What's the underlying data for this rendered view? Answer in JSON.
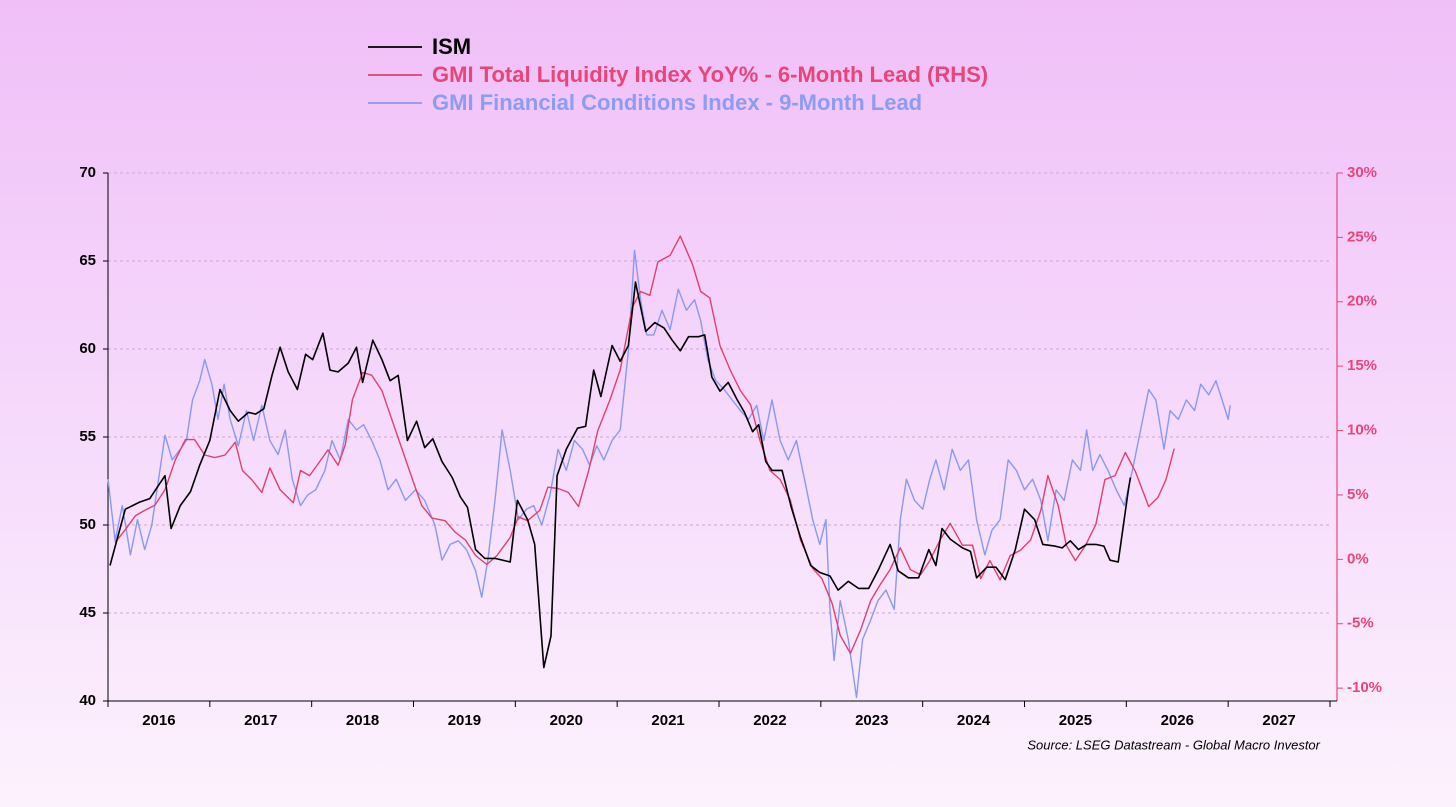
{
  "chart_data": {
    "type": "line",
    "source": "Source: LSEG Datastream - Global Macro Investor",
    "xlim": [
      2016,
      2028
    ],
    "xticks": [
      2016,
      2017,
      2018,
      2019,
      2020,
      2021,
      2022,
      2023,
      2024,
      2025,
      2026,
      2027
    ],
    "ylim": [
      40,
      70
    ],
    "yticks": [
      40,
      45,
      50,
      55,
      60,
      65,
      70
    ],
    "y2lim": [
      -11,
      30
    ],
    "y2ticks": [
      {
        "value": -10,
        "label": "-10%"
      },
      {
        "value": -5,
        "label": "-5%"
      },
      {
        "value": 0,
        "label": "0%"
      },
      {
        "value": 5,
        "label": "5%"
      },
      {
        "value": 10,
        "label": "10%"
      },
      {
        "value": 15,
        "label": "15%"
      },
      {
        "value": 20,
        "label": "20%"
      },
      {
        "value": 25,
        "label": "25%"
      },
      {
        "value": 30,
        "label": "30%"
      }
    ],
    "grid": true,
    "axis_color": "#000000",
    "y2_axis_color": "#e8457a",
    "series": [
      {
        "name": "ISM",
        "color": "#000000",
        "label_color": "#000000",
        "x": [
          2016.02,
          2016.17,
          2016.31,
          2016.41,
          2016.49,
          2016.56,
          2016.62,
          2016.71,
          2016.81,
          2016.9,
          2017.0,
          2017.1,
          2017.2,
          2017.28,
          2017.38,
          2017.45,
          2017.53,
          2017.61,
          2017.69,
          2017.77,
          2017.86,
          2017.94,
          2018.01,
          2018.11,
          2018.18,
          2018.26,
          2018.36,
          2018.44,
          2018.5,
          2018.6,
          2018.69,
          2018.77,
          2018.85,
          2018.94,
          2019.03,
          2019.11,
          2019.19,
          2019.28,
          2019.38,
          2019.46,
          2019.53,
          2019.61,
          2019.7,
          2019.8,
          2019.95,
          2020.02,
          2020.12,
          2020.19,
          2020.28,
          2020.35,
          2020.41,
          2020.5,
          2020.61,
          2020.69,
          2020.77,
          2020.84,
          2020.95,
          2021.03,
          2021.11,
          2021.18,
          2021.28,
          2021.37,
          2021.46,
          2021.54,
          2021.62,
          2021.7,
          2021.8,
          2021.86,
          2021.93,
          2022.01,
          2022.09,
          2022.18,
          2022.25,
          2022.33,
          2022.39,
          2022.46,
          2022.52,
          2022.62,
          2022.71,
          2022.8,
          2022.9,
          2022.99,
          2023.09,
          2023.17,
          2023.27,
          2023.37,
          2023.47,
          2023.56,
          2023.68,
          2023.76,
          2023.86,
          2023.96,
          2024.06,
          2024.13,
          2024.19,
          2024.27,
          2024.39,
          2024.47,
          2024.53,
          2024.63,
          2024.72,
          2024.81,
          2024.91,
          2025.0,
          2025.1,
          2025.18,
          2025.3,
          2025.37,
          2025.45,
          2025.53,
          2025.61,
          2025.7,
          2025.78,
          2025.84,
          2025.92,
          2026.02,
          2026.04
        ],
        "values": [
          47.7,
          50.9,
          51.3,
          51.5,
          52.2,
          52.8,
          49.8,
          51.1,
          51.9,
          53.4,
          54.8,
          57.7,
          56.5,
          55.9,
          56.4,
          56.3,
          56.6,
          58.5,
          60.1,
          58.7,
          57.7,
          59.7,
          59.4,
          60.9,
          58.8,
          58.7,
          59.2,
          60.1,
          58.1,
          60.5,
          59.4,
          58.2,
          58.5,
          54.8,
          55.9,
          54.4,
          54.9,
          53.6,
          52.7,
          51.6,
          51.0,
          48.6,
          48.1,
          48.1,
          47.9,
          51.4,
          50.3,
          48.9,
          41.9,
          43.7,
          52.8,
          54.3,
          55.5,
          55.6,
          58.8,
          57.3,
          60.2,
          59.3,
          60.2,
          63.8,
          61.0,
          61.5,
          61.2,
          60.5,
          59.9,
          60.7,
          60.7,
          60.8,
          58.4,
          57.6,
          58.1,
          57.1,
          56.4,
          55.3,
          55.7,
          53.6,
          53.1,
          53.1,
          51.0,
          49.3,
          47.7,
          47.3,
          47.1,
          46.3,
          46.8,
          46.4,
          46.4,
          47.4,
          48.9,
          47.4,
          47.0,
          47.0,
          48.6,
          47.7,
          49.8,
          49.2,
          48.7,
          48.5,
          47.0,
          47.6,
          47.6,
          46.9,
          48.6,
          50.9,
          50.3,
          48.9,
          48.8,
          48.7,
          49.1,
          48.6,
          48.9,
          48.9,
          48.8,
          48.0,
          47.9,
          52.0,
          52.7
        ]
      },
      {
        "name": "GMI Total Liquidity Index YoY% - 6-Month Lead (RHS)",
        "color": "#e0406e",
        "label_color": "#e8457a",
        "axis": "y2",
        "x": [
          2016.07,
          2016.17,
          2016.27,
          2016.36,
          2016.46,
          2016.56,
          2016.66,
          2016.76,
          2016.85,
          2016.95,
          2017.05,
          2017.15,
          2017.25,
          2017.32,
          2017.41,
          2017.51,
          2017.59,
          2017.69,
          2017.82,
          2017.89,
          2017.98,
          2018.08,
          2018.16,
          2018.26,
          2018.33,
          2018.4,
          2018.5,
          2018.59,
          2018.69,
          2018.79,
          2018.89,
          2018.99,
          2019.08,
          2019.18,
          2019.31,
          2019.41,
          2019.51,
          2019.61,
          2019.72,
          2019.82,
          2019.95,
          2020.03,
          2020.12,
          2020.24,
          2020.32,
          2020.42,
          2020.52,
          2020.62,
          2020.72,
          2020.81,
          2020.93,
          2021.03,
          2021.15,
          2021.23,
          2021.32,
          2021.4,
          2021.52,
          2021.62,
          2021.74,
          2021.82,
          2021.91,
          2022.01,
          2022.11,
          2022.21,
          2022.31,
          2022.4,
          2022.5,
          2022.6,
          2022.7,
          2022.8,
          2022.92,
          2023.01,
          2023.11,
          2023.19,
          2023.29,
          2023.39,
          2023.49,
          2023.58,
          2023.68,
          2023.78,
          2023.88,
          2023.98,
          2024.07,
          2024.17,
          2024.27,
          2024.39,
          2024.49,
          2024.57,
          2024.66,
          2024.76,
          2024.86,
          2024.96,
          2025.06,
          2025.16,
          2025.23,
          2025.33,
          2025.41,
          2025.5,
          2025.6,
          2025.7,
          2025.79,
          2025.89,
          2025.99,
          2026.09,
          2026.22,
          2026.31,
          2026.39,
          2026.47
        ],
        "values": [
          1.3,
          2.3,
          3.4,
          3.8,
          4.2,
          5.4,
          7.7,
          9.3,
          9.3,
          8.1,
          7.9,
          8.1,
          9.1,
          6.9,
          6.2,
          5.2,
          7.1,
          5.4,
          4.4,
          6.9,
          6.5,
          7.6,
          8.5,
          7.3,
          8.9,
          12.4,
          14.5,
          14.3,
          13.1,
          10.8,
          8.5,
          6.2,
          4.2,
          3.2,
          3.0,
          2.1,
          1.5,
          0.3,
          -0.4,
          0.3,
          1.7,
          3.3,
          3.0,
          3.8,
          5.6,
          5.5,
          5.2,
          4.1,
          6.9,
          10.0,
          12.4,
          14.7,
          19.6,
          20.8,
          20.5,
          23.1,
          23.6,
          25.1,
          22.9,
          20.8,
          20.3,
          16.6,
          14.7,
          13.1,
          12.0,
          9.3,
          6.9,
          6.2,
          4.6,
          1.5,
          -0.7,
          -1.5,
          -3.4,
          -5.9,
          -7.3,
          -5.5,
          -3.2,
          -2.0,
          -0.8,
          0.9,
          -0.8,
          -1.2,
          -0.1,
          1.5,
          2.8,
          1.1,
          1.1,
          -1.5,
          -0.1,
          -1.6,
          0.3,
          0.7,
          1.5,
          3.8,
          6.5,
          4.2,
          1.1,
          -0.1,
          1.1,
          2.7,
          6.2,
          6.5,
          8.3,
          6.8,
          4.1,
          4.8,
          6.2,
          8.6
        ]
      },
      {
        "name": "GMI Financial Conditions Index - 9-Month Lead",
        "color": "#8899ee",
        "label_color": "#8c9cf0",
        "x": [
          2016.0,
          2016.07,
          2016.14,
          2016.22,
          2016.29,
          2016.36,
          2016.43,
          2016.51,
          2016.56,
          2016.63,
          2016.71,
          2016.77,
          2016.83,
          2016.9,
          2016.95,
          2017.02,
          2017.08,
          2017.14,
          2017.2,
          2017.28,
          2017.36,
          2017.43,
          2017.51,
          2017.59,
          2017.67,
          2017.74,
          2017.81,
          2017.89,
          2017.96,
          2018.04,
          2018.13,
          2018.2,
          2018.28,
          2018.36,
          2018.44,
          2018.51,
          2018.59,
          2018.67,
          2018.75,
          2018.83,
          2018.92,
          2019.02,
          2019.11,
          2019.21,
          2019.28,
          2019.36,
          2019.44,
          2019.52,
          2019.61,
          2019.67,
          2019.73,
          2019.8,
          2019.87,
          2019.95,
          2020.03,
          2020.11,
          2020.18,
          2020.26,
          2020.34,
          2020.42,
          2020.5,
          2020.58,
          2020.66,
          2020.73,
          2020.8,
          2020.87,
          2020.95,
          2021.03,
          2021.11,
          2021.17,
          2021.23,
          2021.29,
          2021.36,
          2021.44,
          2021.52,
          2021.6,
          2021.68,
          2021.76,
          2021.82,
          2021.89,
          2021.97,
          2022.05,
          2022.13,
          2022.21,
          2022.29,
          2022.37,
          2022.44,
          2022.52,
          2022.6,
          2022.68,
          2022.76,
          2022.84,
          2022.92,
          2022.99,
          2023.05,
          2023.09,
          2023.13,
          2023.19,
          2023.27,
          2023.35,
          2023.41,
          2023.49,
          2023.56,
          2023.64,
          2023.72,
          2023.78,
          2023.84,
          2023.92,
          2024.0,
          2024.07,
          2024.13,
          2024.21,
          2024.29,
          2024.37,
          2024.45,
          2024.53,
          2024.61,
          2024.68,
          2024.76,
          2024.84,
          2024.92,
          2025.0,
          2025.08,
          2025.16,
          2025.23,
          2025.31,
          2025.39,
          2025.47,
          2025.55,
          2025.61,
          2025.67,
          2025.74,
          2025.82,
          2025.9,
          2025.98,
          2026.06,
          2026.14,
          2026.22,
          2026.29,
          2026.37,
          2026.43,
          2026.51,
          2026.59,
          2026.67,
          2026.73,
          2026.81,
          2026.88,
          2026.94,
          2027.0,
          2027.02
        ],
        "values": [
          52.6,
          49.1,
          51.1,
          48.3,
          50.3,
          48.6,
          50.0,
          53.1,
          55.1,
          53.7,
          54.3,
          54.8,
          57.1,
          58.2,
          59.4,
          58.0,
          56.0,
          58.0,
          56.0,
          54.5,
          56.5,
          54.8,
          56.8,
          54.8,
          54.0,
          55.4,
          52.6,
          51.1,
          51.7,
          52.0,
          53.1,
          54.8,
          53.7,
          56.0,
          55.4,
          55.7,
          54.8,
          53.7,
          52.0,
          52.6,
          51.4,
          52.0,
          51.4,
          50.0,
          48.0,
          48.9,
          49.1,
          48.6,
          47.4,
          45.9,
          48.0,
          51.4,
          55.4,
          53.1,
          50.3,
          50.9,
          51.1,
          50.0,
          51.7,
          54.3,
          53.1,
          54.8,
          54.3,
          53.4,
          54.5,
          53.7,
          54.8,
          55.4,
          59.9,
          65.6,
          62.8,
          60.8,
          60.8,
          62.2,
          61.1,
          63.4,
          62.2,
          62.8,
          61.6,
          59.4,
          58.2,
          57.7,
          57.1,
          56.5,
          56.0,
          56.8,
          54.8,
          57.1,
          54.8,
          53.7,
          54.8,
          52.6,
          50.3,
          48.9,
          50.3,
          45.2,
          42.3,
          45.7,
          43.5,
          40.2,
          43.5,
          44.6,
          45.7,
          46.3,
          45.2,
          50.3,
          52.6,
          51.4,
          50.9,
          52.6,
          53.7,
          52.0,
          54.3,
          53.1,
          53.7,
          50.3,
          48.3,
          49.7,
          50.3,
          53.7,
          53.1,
          52.0,
          52.6,
          51.4,
          49.1,
          52.0,
          51.4,
          53.7,
          53.1,
          55.4,
          53.1,
          54.0,
          53.1,
          52.0,
          51.1,
          53.1,
          55.4,
          57.7,
          57.1,
          54.3,
          56.5,
          56.0,
          57.1,
          56.5,
          58.0,
          57.4,
          58.2,
          57.1,
          56.0,
          56.8
        ]
      }
    ]
  }
}
